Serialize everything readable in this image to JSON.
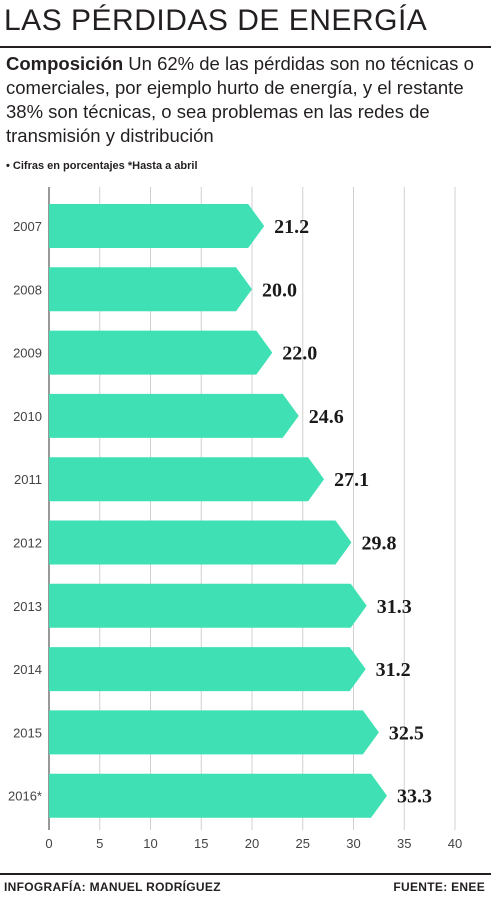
{
  "title": "LAS PÉRDIDAS DE ENERGÍA",
  "description": {
    "lead": "Composición",
    "text": " Un 62% de las pérdidas son no técnicas o comerciales, por ejemplo hurto de energía, y el restante 38% son técnicas, o sea problemas en las redes de transmisión y distribución"
  },
  "note": "• Cifras en porcentajes *Hasta a abril",
  "footer": {
    "credit": "INFOGRAFÍA: MANUEL RODRÍGUEZ",
    "source": "FUENTE: ENEE"
  },
  "colors": {
    "bar": "#3fe0b4",
    "grid": "#d0d0d0",
    "text": "#231f20"
  },
  "chart_data": {
    "type": "bar",
    "orientation": "horizontal",
    "bar_shape": "arrow",
    "categories": [
      "2007",
      "2008",
      "2009",
      "2010",
      "2011",
      "2012",
      "2013",
      "2014",
      "2015",
      "2016*"
    ],
    "values": [
      21.2,
      20.0,
      22.0,
      24.6,
      27.1,
      29.8,
      31.3,
      31.2,
      32.5,
      33.3
    ],
    "value_labels": [
      "21.2",
      "20.0",
      "22.0",
      "24.6",
      "27.1",
      "29.8",
      "31.3",
      "31.2",
      "32.5",
      "33.3"
    ],
    "xlim": [
      0,
      40
    ],
    "xticks": [
      "0",
      "5",
      "10",
      "15",
      "20",
      "25",
      "30",
      "35",
      "40"
    ],
    "grid": true
  }
}
